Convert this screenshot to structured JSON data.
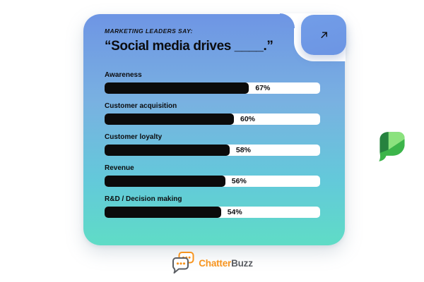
{
  "card": {
    "eyebrow": "MARKETING LEADERS SAY:",
    "quote": "“Social media drives ____.”"
  },
  "chart_data": {
    "type": "bar",
    "orientation": "horizontal",
    "title": "Social media drives ____.",
    "subtitle": "MARKETING LEADERS SAY:",
    "categories": [
      "Awareness",
      "Customer acquisition",
      "Customer loyalty",
      "Revenue",
      "R&D / Decision making"
    ],
    "values": [
      67,
      60,
      58,
      56,
      54
    ],
    "display_values": [
      "67%",
      "60%",
      "58%",
      "56%",
      "54%"
    ],
    "xlim": [
      0,
      100
    ],
    "grid": false,
    "legend": false,
    "bar_color": "#0B0B0B",
    "track_color": "#FFFFFF"
  },
  "buttons": {
    "expand": {
      "icon": "arrow-up-right-icon"
    }
  },
  "branding": {
    "chatterbuzz_part1": "Chatter",
    "chatterbuzz_part2": "Buzz",
    "chatterbuzz_icon": "chat-bubbles-icon",
    "side_logo_icon": "sprout-leaf-icon"
  },
  "colors": {
    "card_gradient_top": "#6E95E4",
    "card_gradient_mid": "#79B1E1",
    "card_gradient_lower": "#63C9DA",
    "card_gradient_bottom": "#5FDCC6",
    "bar_fill": "#0B0B0B",
    "bar_track": "#FFFFFF",
    "text": "#0C0D10",
    "leaf_dark": "#26823F",
    "leaf_mid": "#3CB54A",
    "leaf_light": "#8BE27E",
    "logo_orange": "#F7941E",
    "logo_gray": "#5B5E63",
    "page_background": "#FFFFFF"
  }
}
